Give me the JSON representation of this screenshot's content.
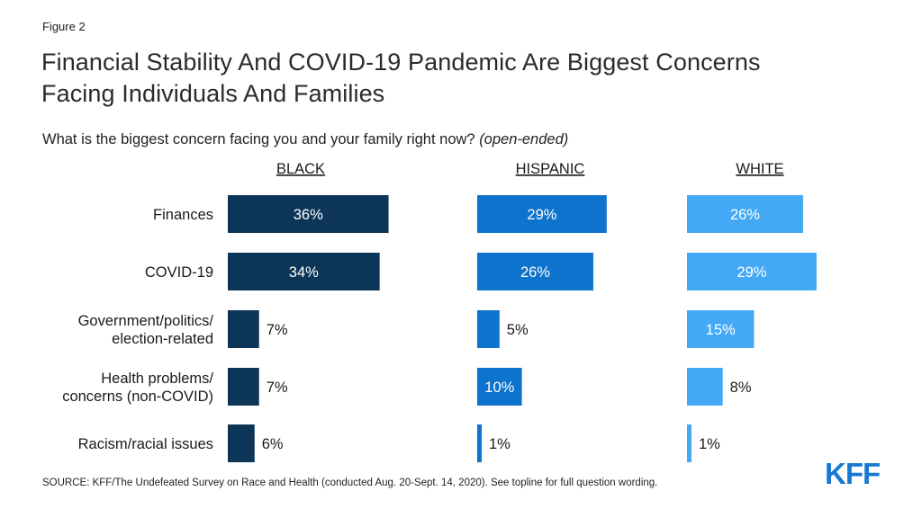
{
  "header": {
    "figure_label": "Figure 2",
    "title_line1": "Financial Stability And COVID-19 Pandemic Are Biggest Concerns",
    "title_line2": "Facing Individuals And Families",
    "question": "What is the biggest concern facing you and your family right now?",
    "question_note": "(open-ended)"
  },
  "footer": {
    "source": "SOURCE: KFF/The Undefeated Survey on Race and Health (conducted Aug. 20-Sept. 14, 2020). See topline for full question wording.",
    "logo_text": "KFF"
  },
  "chart_data": {
    "type": "bar",
    "orientation": "horizontal",
    "layout": "small-multiples",
    "categories": [
      "Finances",
      "COVID-19",
      "Government/politics/\nelection-related",
      "Health problems/\nconcerns (non-COVID)",
      "Racism/racial issues"
    ],
    "series": [
      {
        "name": "BLACK",
        "color": "#0c3558",
        "values": [
          36,
          34,
          7,
          7,
          6
        ]
      },
      {
        "name": "HISPANIC",
        "color": "#0e73cc",
        "values": [
          29,
          26,
          5,
          10,
          1
        ]
      },
      {
        "name": "WHITE",
        "color": "#43a9f5",
        "values": [
          26,
          29,
          15,
          8,
          1
        ]
      }
    ],
    "value_suffix": "%",
    "grid": false
  }
}
